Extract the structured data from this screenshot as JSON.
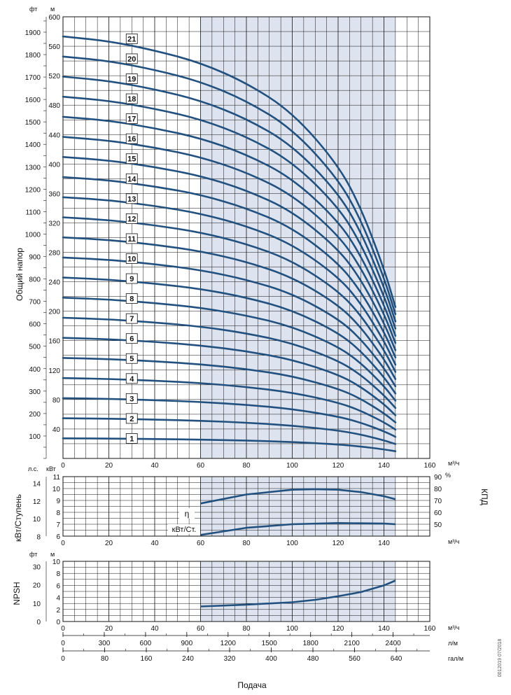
{
  "chart_data": [
    {
      "type": "line",
      "panel": "head",
      "ylabel": "Общий напор",
      "y_units": [
        "фт",
        "м"
      ],
      "x_unit": "м³/ч",
      "x_ticks": [
        "0",
        "20",
        "40",
        "60",
        "80",
        "100",
        "120",
        "140",
        "160"
      ],
      "y_ticks_m": [
        "40",
        "80",
        "120",
        "160",
        "200",
        "240",
        "280",
        "320",
        "360",
        "400",
        "440",
        "480",
        "520",
        "560",
        "600"
      ],
      "y_ticks_ft": [
        "100",
        "200",
        "300",
        "400",
        "500",
        "600",
        "700",
        "800",
        "900",
        "1000",
        "1100",
        "1200",
        "1300",
        "1400",
        "1500",
        "1600",
        "1700",
        "1800",
        "1900"
      ],
      "xlim": [
        0,
        160
      ],
      "ylim_m": [
        0,
        600
      ],
      "recommended_range": [
        60,
        145
      ],
      "x": [
        0,
        20,
        40,
        60,
        80,
        100,
        120,
        130,
        140,
        145
      ],
      "stage_unit_head_m": [
        27.3,
        27.0,
        26.4,
        25.6,
        24.3,
        22.4,
        19.0,
        16.2,
        12.3,
        9.8
      ],
      "series": [
        {
          "name": "1",
          "stages": 1
        },
        {
          "name": "2",
          "stages": 2
        },
        {
          "name": "3",
          "stages": 3
        },
        {
          "name": "4",
          "stages": 4
        },
        {
          "name": "5",
          "stages": 5
        },
        {
          "name": "6",
          "stages": 6
        },
        {
          "name": "7",
          "stages": 7
        },
        {
          "name": "8",
          "stages": 8
        },
        {
          "name": "9",
          "stages": 9
        },
        {
          "name": "10",
          "stages": 10
        },
        {
          "name": "11",
          "stages": 11
        },
        {
          "name": "12",
          "stages": 12
        },
        {
          "name": "13",
          "stages": 13
        },
        {
          "name": "14",
          "stages": 14
        },
        {
          "name": "15",
          "stages": 15
        },
        {
          "name": "16",
          "stages": 16
        },
        {
          "name": "17",
          "stages": 17
        },
        {
          "name": "18",
          "stages": 18
        },
        {
          "name": "19",
          "stages": 19
        },
        {
          "name": "20",
          "stages": 20
        },
        {
          "name": "21",
          "stages": 21
        }
      ]
    },
    {
      "type": "line",
      "panel": "power-efficiency",
      "ylabel_left": "кВт/Ступень",
      "ylabel_right": "КПД",
      "y_units_left": [
        "л.с.",
        "кВт"
      ],
      "y_unit_right": "%",
      "x_unit": "м³/ч",
      "x_ticks": [
        "0",
        "20",
        "40",
        "60",
        "80",
        "100",
        "120",
        "140"
      ],
      "y_ticks_kw": [
        "6",
        "7",
        "8",
        "9",
        "10",
        "11"
      ],
      "y_ticks_hp": [
        "8",
        "10",
        "12",
        "14"
      ],
      "y_ticks_eff": [
        "50",
        "60",
        "70",
        "80",
        "90"
      ],
      "ylim_kw": [
        6,
        11
      ],
      "ylim_eff": [
        40,
        90
      ],
      "series": [
        {
          "name": "η",
          "x": [
            60,
            80,
            100,
            110,
            120,
            130,
            140,
            145
          ],
          "values": [
            67.5,
            75,
            79,
            79.5,
            79,
            77,
            73.5,
            71
          ]
        },
        {
          "name": "кВт/Ст.",
          "x": [
            60,
            80,
            100,
            120,
            140,
            145
          ],
          "values": [
            6.1,
            6.7,
            7.0,
            7.1,
            7.05,
            7.0
          ]
        }
      ]
    },
    {
      "type": "line",
      "panel": "npsh",
      "ylabel": "NPSH",
      "y_units": [
        "фт",
        "м"
      ],
      "x_unit": "м³/ч",
      "x_ticks": [
        "0",
        "20",
        "40",
        "60",
        "80",
        "100",
        "120",
        "140",
        "160"
      ],
      "y_ticks_m": [
        "0",
        "2",
        "4",
        "6",
        "8",
        "10"
      ],
      "y_ticks_ft": [
        "0",
        "10",
        "20",
        "30"
      ],
      "ylim_m": [
        0,
        10
      ],
      "series": [
        {
          "name": "NPSH",
          "x": [
            60,
            80,
            100,
            110,
            120,
            130,
            140,
            145
          ],
          "values": [
            2.5,
            2.8,
            3.2,
            3.6,
            4.2,
            4.9,
            6.0,
            6.8
          ]
        }
      ]
    }
  ],
  "secondary_axes": {
    "lpm_ticks": [
      "0",
      "300",
      "600",
      "900",
      "1200",
      "1500",
      "1800",
      "2100",
      "2400"
    ],
    "lpm_unit": "л/м",
    "gpm_ticks": [
      "0",
      "80",
      "160",
      "240",
      "320",
      "400",
      "480",
      "560",
      "640"
    ],
    "gpm_unit": "гал/м"
  },
  "xlabel": "Подача",
  "doc_code": "0012019 07/2018"
}
